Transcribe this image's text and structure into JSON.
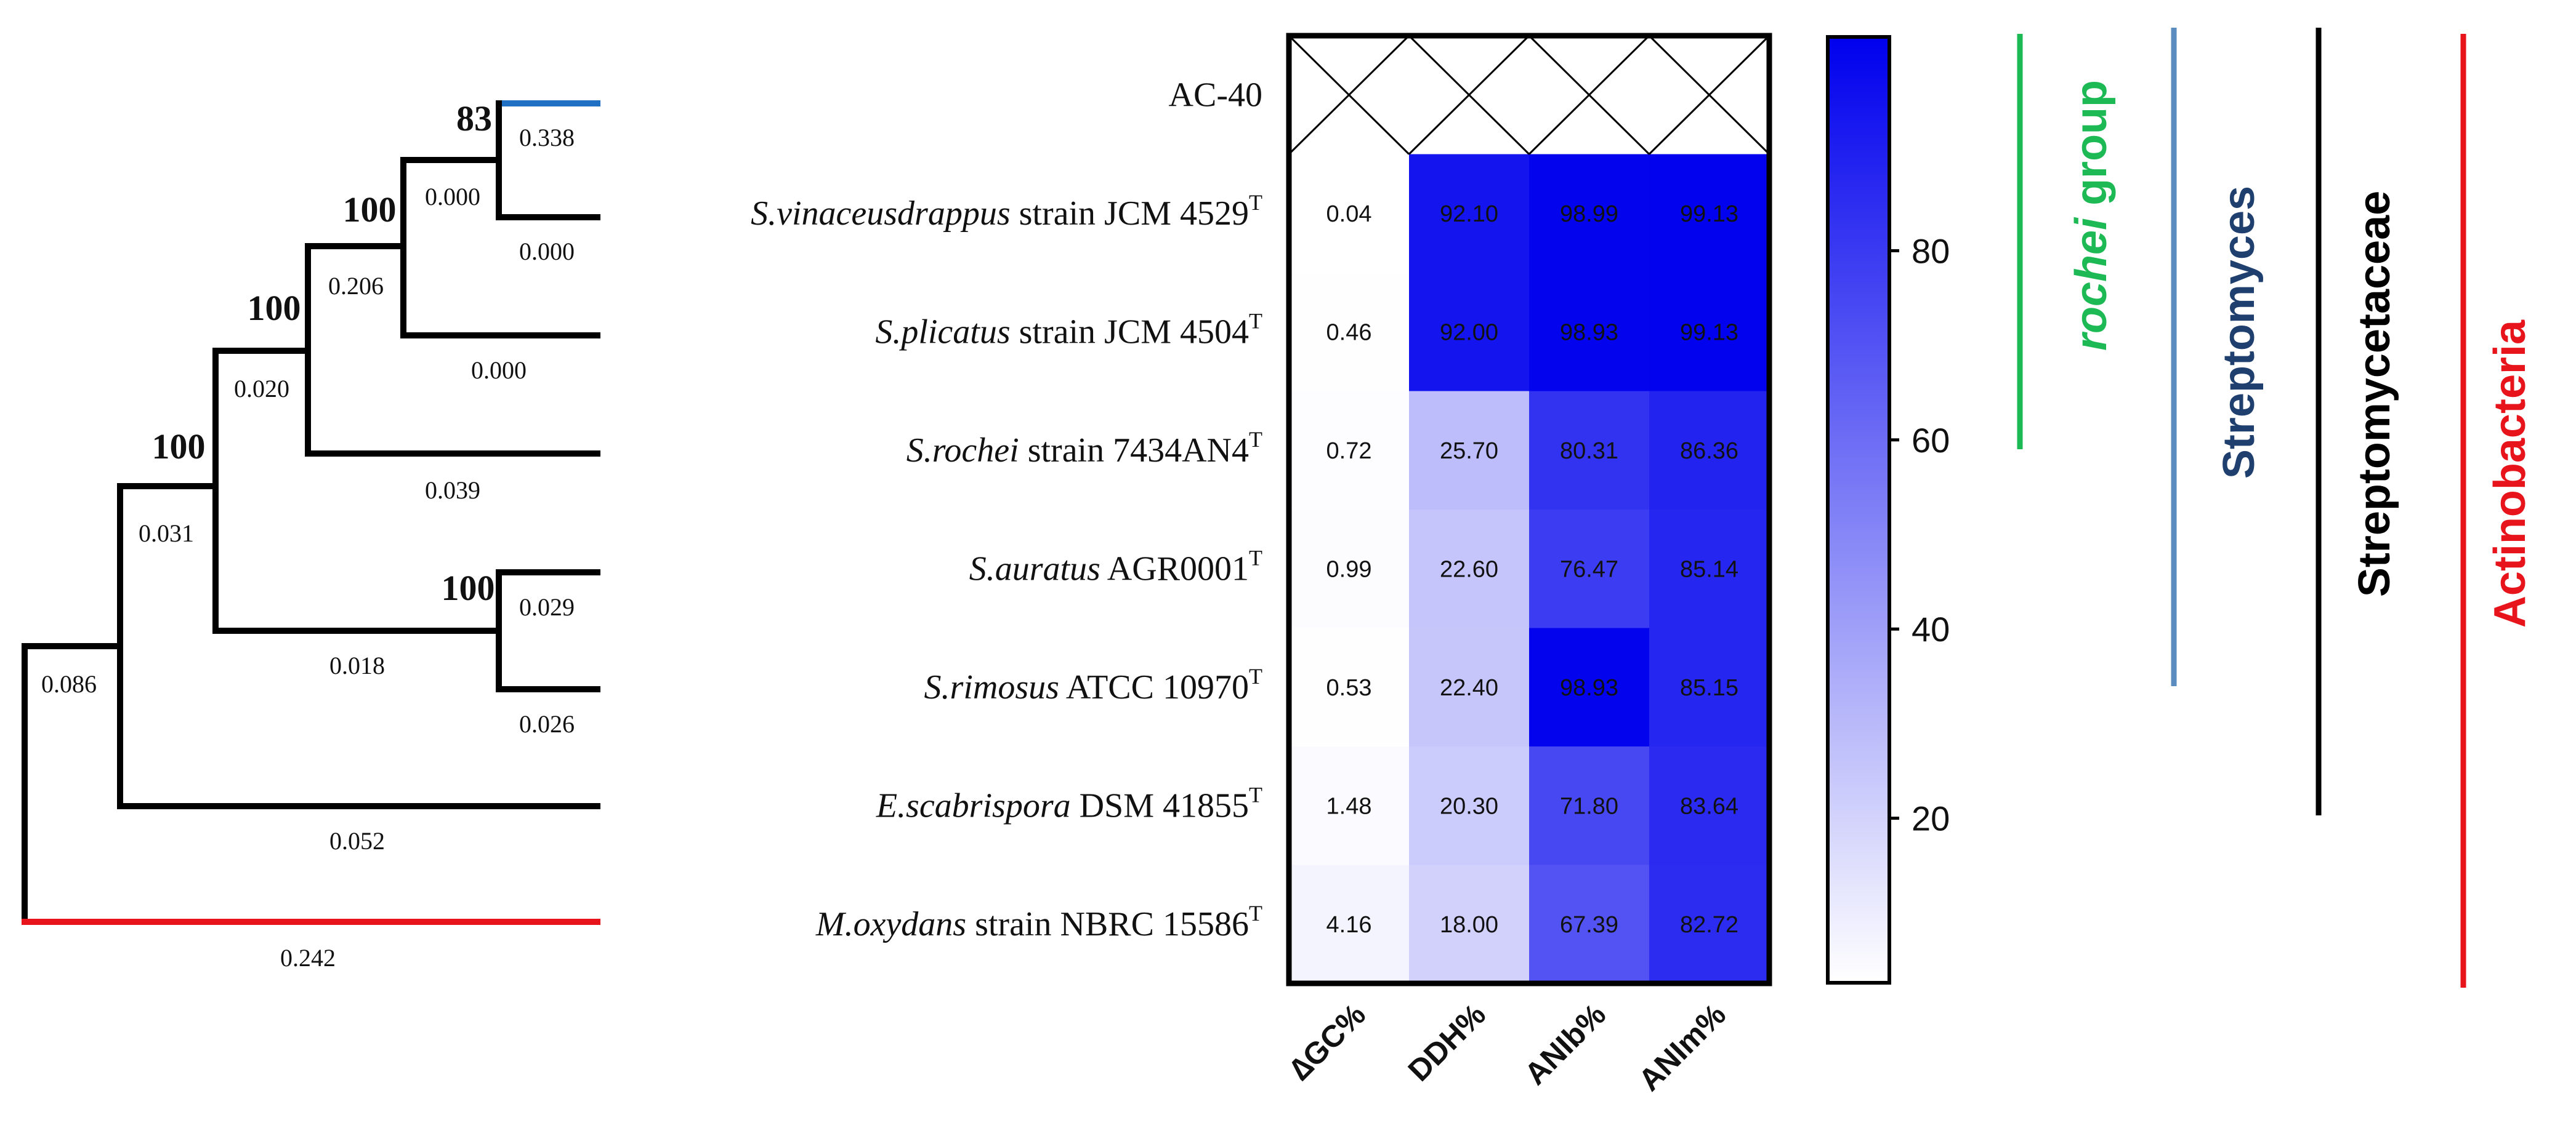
{
  "chart_data": {
    "type": "heatmap",
    "title": "",
    "columns": [
      "∆GC%",
      "DDH%",
      "ANIb%",
      "ANIm%"
    ],
    "rows": [
      {
        "name_italic": "",
        "name_rest": "AC-40",
        "sup": "",
        "values": null
      },
      {
        "name_italic": "S.vinaceusdrappus",
        "name_rest": " strain JCM 4529",
        "sup": "T",
        "values": [
          "0.04",
          "92.10",
          "98.99",
          "99.13"
        ]
      },
      {
        "name_italic": "S.plicatus",
        "name_rest": " strain JCM 4504",
        "sup": "T",
        "values": [
          "0.46",
          "92.00",
          "98.93",
          "99.13"
        ]
      },
      {
        "name_italic": "S.rochei",
        "name_rest": " strain 7434AN4",
        "sup": "T",
        "values": [
          "0.72",
          "25.70",
          "80.31",
          "86.36"
        ]
      },
      {
        "name_italic": "S.auratus",
        "name_rest": " AGR0001",
        "sup": "T",
        "values": [
          "0.99",
          "22.60",
          "76.47",
          "85.14"
        ]
      },
      {
        "name_italic": "S.rimosus",
        "name_rest": " ATCC 10970",
        "sup": "T",
        "values": [
          "0.53",
          "22.40",
          "98.93",
          "85.15"
        ]
      },
      {
        "name_italic": "E.scabrispora",
        "name_rest": " DSM 41855",
        "sup": "T",
        "values": [
          "1.48",
          "20.30",
          "71.80",
          "83.64"
        ]
      },
      {
        "name_italic": "M.oxydans",
        "name_rest": " strain NBRC 15586",
        "sup": "T",
        "values": [
          "4.16",
          "18.00",
          "67.39",
          "82.72"
        ]
      }
    ],
    "colorscale": {
      "min": 0,
      "max": 100,
      "low_color": "#ffffff",
      "high_color": "#0000ee",
      "ticks": [
        80,
        60,
        40,
        20
      ]
    },
    "tree": {
      "bootstrap": [
        "83",
        "100",
        "100",
        "100",
        "100"
      ],
      "branch_lengths": [
        "0.338",
        "0.000",
        "0.000",
        "0.206",
        "0.000",
        "0.020",
        "0.039",
        "0.031",
        "0.029",
        "0.026",
        "0.018",
        "0.086",
        "0.052",
        "0.242"
      ],
      "colors": {
        "highlight": "#1f6fc2",
        "outgroup": "#e8141c",
        "default": "#000000"
      }
    },
    "taxonomy": [
      {
        "label_green": "rochei",
        "label_rest": " group",
        "color": "#1db954",
        "text_color": "#1db954"
      },
      {
        "label_green": "",
        "label_rest": "Streptomyces",
        "color": "#5b8cc0",
        "text_color": "#1f3f6e"
      },
      {
        "label_green": "",
        "label_rest": "Streptomycetaceae",
        "color": "#000000",
        "text_color": "#000000"
      },
      {
        "label_green": "",
        "label_rest": "Actinobacteria",
        "color": "#e8141c",
        "text_color": "#e8141c"
      }
    ]
  }
}
